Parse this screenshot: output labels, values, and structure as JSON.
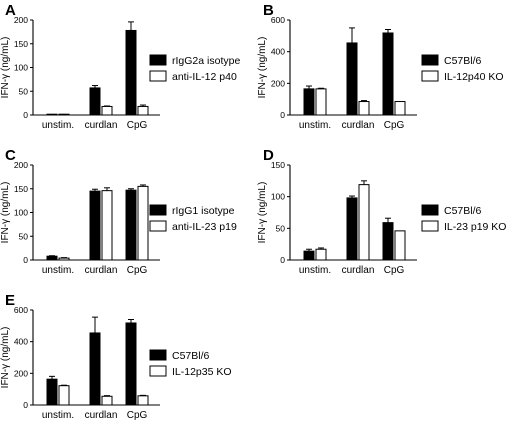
{
  "chart_data": [
    {
      "panel": "A",
      "type": "bar",
      "categories": [
        "unstim.",
        "curdlan",
        "CpG"
      ],
      "ylabel": "IFN-γ (ng/mL)",
      "ylim": [
        0,
        200
      ],
      "yticks": [
        0,
        50,
        100,
        150,
        200
      ],
      "series": [
        {
          "name": "rIgG2a isotype",
          "color": "#000000",
          "values": [
            1,
            57,
            178
          ],
          "errors": [
            0,
            5,
            18
          ]
        },
        {
          "name": "anti-IL-12 p40",
          "color": "#ffffff",
          "values": [
            1,
            18,
            18
          ],
          "errors": [
            0,
            1,
            3
          ]
        }
      ]
    },
    {
      "panel": "B",
      "type": "bar",
      "categories": [
        "unstim.",
        "curdlan",
        "CpG"
      ],
      "ylabel": "IFN-γ (ng/mL)",
      "ylim": [
        0,
        600
      ],
      "yticks": [
        0,
        200,
        400,
        600
      ],
      "series": [
        {
          "name": "C57Bl/6",
          "color": "#000000",
          "values": [
            165,
            455,
            518
          ],
          "errors": [
            18,
            95,
            22
          ]
        },
        {
          "name": "IL-12p40 KO",
          "color": "#ffffff",
          "values": [
            165,
            85,
            85
          ],
          "errors": [
            4,
            6,
            0
          ]
        }
      ]
    },
    {
      "panel": "C",
      "type": "bar",
      "categories": [
        "unstim.",
        "curdlan",
        "CpG"
      ],
      "ylabel": "IFN-γ (ng/mL)",
      "ylim": [
        0,
        200
      ],
      "yticks": [
        0,
        50,
        100,
        150,
        200
      ],
      "series": [
        {
          "name": "rIgG1 isotype",
          "color": "#000000",
          "values": [
            8,
            145,
            147
          ],
          "errors": [
            1,
            4,
            3
          ]
        },
        {
          "name": "anti-IL-23 p19",
          "color": "#ffffff",
          "values": [
            4,
            146,
            155
          ],
          "errors": [
            1,
            6,
            3
          ]
        }
      ]
    },
    {
      "panel": "D",
      "type": "bar",
      "categories": [
        "unstim.",
        "curdlan",
        "CpG"
      ],
      "ylabel": "IFN-γ (ng/mL)",
      "ylim": [
        0,
        150
      ],
      "yticks": [
        0,
        50,
        100,
        150
      ],
      "series": [
        {
          "name": "C57Bl/6",
          "color": "#000000",
          "values": [
            14,
            98,
            59
          ],
          "errors": [
            3,
            3,
            7
          ]
        },
        {
          "name": "IL-23 p19 KO",
          "color": "#ffffff",
          "values": [
            17,
            119,
            46
          ],
          "errors": [
            2,
            6,
            0
          ]
        }
      ]
    },
    {
      "panel": "E",
      "type": "bar",
      "categories": [
        "unstim.",
        "curdlan",
        "CpG"
      ],
      "ylabel": "IFN-γ (ng/mL)",
      "ylim": [
        0,
        600
      ],
      "yticks": [
        0,
        200,
        400,
        600
      ],
      "series": [
        {
          "name": "C57Bl/6",
          "color": "#000000",
          "values": [
            163,
            455,
            518
          ],
          "errors": [
            18,
            100,
            22
          ]
        },
        {
          "name": "IL-12p35 KO",
          "color": "#ffffff",
          "values": [
            122,
            55,
            58
          ],
          "errors": [
            3,
            4,
            3
          ]
        }
      ]
    }
  ]
}
